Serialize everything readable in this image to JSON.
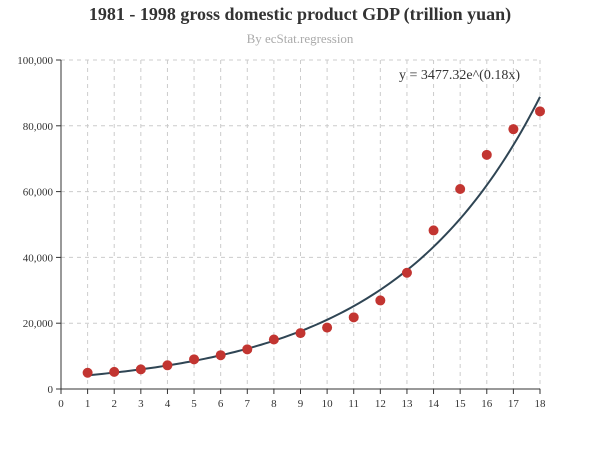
{
  "chart_data": {
    "type": "scatter",
    "title": "1981 - 1998 gross domestic product GDP (trillion yuan)",
    "subtitle": "By ecStat.regression",
    "xlabel": "",
    "ylabel": "",
    "xlim": [
      0,
      18
    ],
    "ylim": [
      0,
      100000
    ],
    "x_ticks": [
      0,
      1,
      2,
      3,
      4,
      5,
      6,
      7,
      8,
      9,
      10,
      11,
      12,
      13,
      14,
      15,
      16,
      17,
      18
    ],
    "y_ticks": [
      0,
      20000,
      40000,
      60000,
      80000,
      100000
    ],
    "y_tick_labels": [
      "0",
      "20,000",
      "40,000",
      "60,000",
      "80,000",
      "100,000"
    ],
    "grid": true,
    "series": [
      {
        "type": "scatter",
        "color": "#c23531",
        "points": [
          [
            1,
            4944
          ],
          [
            2,
            5202
          ],
          [
            3,
            5963
          ],
          [
            4,
            7208
          ],
          [
            5,
            9016
          ],
          [
            6,
            10275
          ],
          [
            7,
            12059
          ],
          [
            8,
            15043
          ],
          [
            9,
            16992
          ],
          [
            10,
            18668
          ],
          [
            11,
            21782
          ],
          [
            12,
            26924
          ],
          [
            13,
            35334
          ],
          [
            14,
            48198
          ],
          [
            15,
            60794
          ],
          [
            16,
            71177
          ],
          [
            17,
            78973
          ],
          [
            18,
            84402
          ]
        ]
      },
      {
        "type": "line",
        "color": "#2f4554",
        "regression": "exponential",
        "a": 3477.32,
        "b": 0.18,
        "equation": "y = 3477.32e^(0.18x)"
      }
    ]
  }
}
